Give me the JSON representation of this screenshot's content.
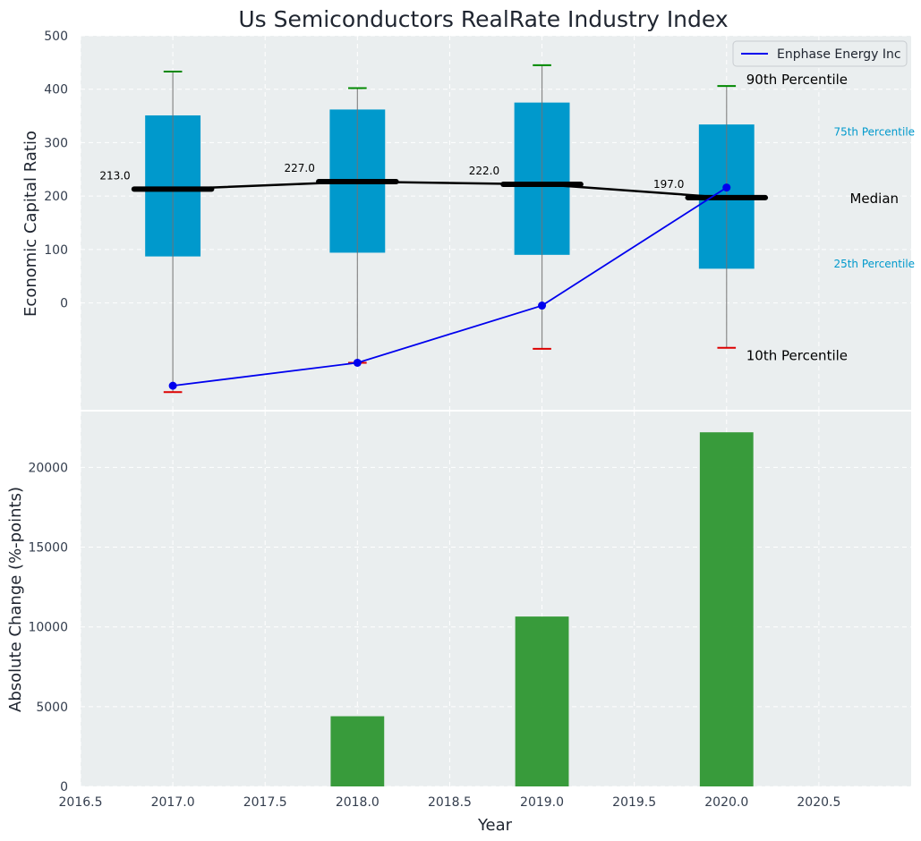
{
  "chart_data": [
    {
      "type": "box",
      "title": "Us Semiconductors RealRate Industry Index",
      "ylabel": "Economic Capital Ratio",
      "xlim": [
        2016.5,
        2021.0
      ],
      "ylim": [
        -200,
        500
      ],
      "yticks": [
        0,
        100,
        200,
        300,
        400,
        500
      ],
      "grid": true,
      "legend": {
        "position": "top-right",
        "entries": [
          "Enphase Energy Inc"
        ]
      },
      "boxes": [
        {
          "x": 2017,
          "p10": -167,
          "p25": 87,
          "median": 213,
          "p75": 351,
          "p90": 433,
          "median_label": "213.0"
        },
        {
          "x": 2018,
          "p10": -112,
          "p25": 94,
          "median": 227,
          "p75": 362,
          "p90": 402,
          "median_label": "227.0"
        },
        {
          "x": 2019,
          "p10": -86,
          "p25": 90,
          "median": 222,
          "p75": 375,
          "p90": 445,
          "median_label": "222.0"
        },
        {
          "x": 2020,
          "p10": -84,
          "p25": 64,
          "median": 197,
          "p75": 334,
          "p90": 406,
          "median_label": "197.0"
        }
      ],
      "company_series": {
        "name": "Enphase Energy Inc",
        "x": [
          2017,
          2018,
          2019,
          2020
        ],
        "y": [
          -155,
          -112,
          -5,
          216
        ],
        "color": "#0000ee"
      },
      "box_color": "#0099cc",
      "percentile_labels": {
        "p90": "90th Percentile",
        "p75": "75th Percentile",
        "median": "Median",
        "p25": "25th Percentile",
        "p10": "10th Percentile"
      }
    },
    {
      "type": "bar",
      "xlabel": "Year",
      "ylabel": "Absolute Change (%-points)",
      "x": [
        2018,
        2019,
        2020
      ],
      "values": [
        4400,
        10650,
        22200
      ],
      "xlim": [
        2016.5,
        2021.0
      ],
      "xticks": [
        2016.5,
        2017.0,
        2017.5,
        2018.0,
        2018.5,
        2019.0,
        2019.5,
        2020.0,
        2020.5
      ],
      "ylim": [
        0,
        23500
      ],
      "yticks": [
        0,
        5000,
        10000,
        15000,
        20000
      ],
      "bar_color": "#2e9630",
      "grid": true
    }
  ]
}
